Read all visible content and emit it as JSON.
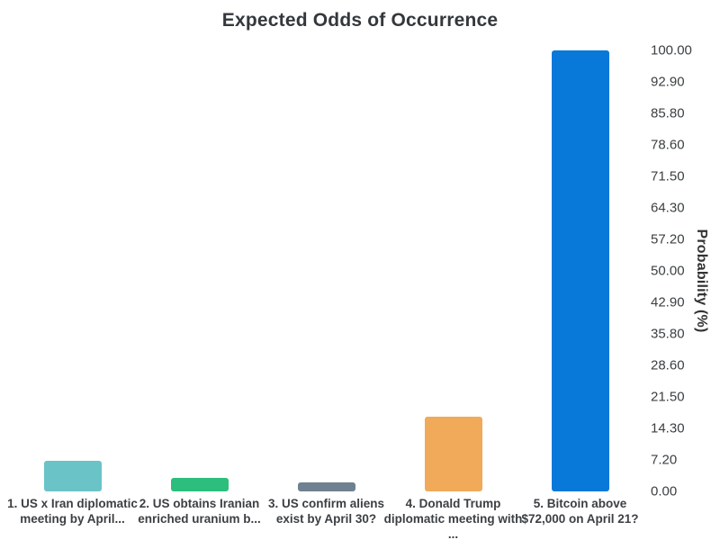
{
  "chart_data": {
    "type": "bar",
    "title": "Expected Odds of Occurrence",
    "xlabel": "",
    "ylabel": "Probability (%)",
    "ylim": [
      0,
      100
    ],
    "grid": false,
    "legend_position": "none",
    "y_axis_side": "right",
    "yticks": [
      "0.00",
      "7.20",
      "14.30",
      "21.50",
      "28.60",
      "35.80",
      "42.90",
      "50.00",
      "57.20",
      "64.30",
      "71.50",
      "78.60",
      "85.80",
      "92.90",
      "100.00"
    ],
    "categories": [
      "1. US x Iran diplomatic meeting by April...",
      "2. US obtains Iranian enriched uranium b...",
      "3. US confirm aliens exist by April 30?",
      "4. Donald Trump diplomatic meeting with ...",
      "5. Bitcoin above $72,000 on April 21?"
    ],
    "category_lines": [
      [
        "1. US x Iran diplomatic",
        "meeting by April..."
      ],
      [
        "2. US obtains Iranian",
        "enriched uranium b..."
      ],
      [
        "3. US confirm aliens",
        "exist by April 30?"
      ],
      [
        "4. Donald Trump",
        "diplomatic meeting with",
        "..."
      ],
      [
        "5. Bitcoin above",
        "$72,000 on April 21?"
      ]
    ],
    "series": [
      {
        "name": "Probability (%)",
        "values": [
          7,
          3,
          2,
          17,
          100
        ]
      }
    ],
    "bar_colors": [
      "#69c3c7",
      "#2dbd7c",
      "#6f8090",
      "#f0aa5a",
      "#0878d9"
    ],
    "text_color": "#3c4043",
    "background": "#ffffff"
  }
}
